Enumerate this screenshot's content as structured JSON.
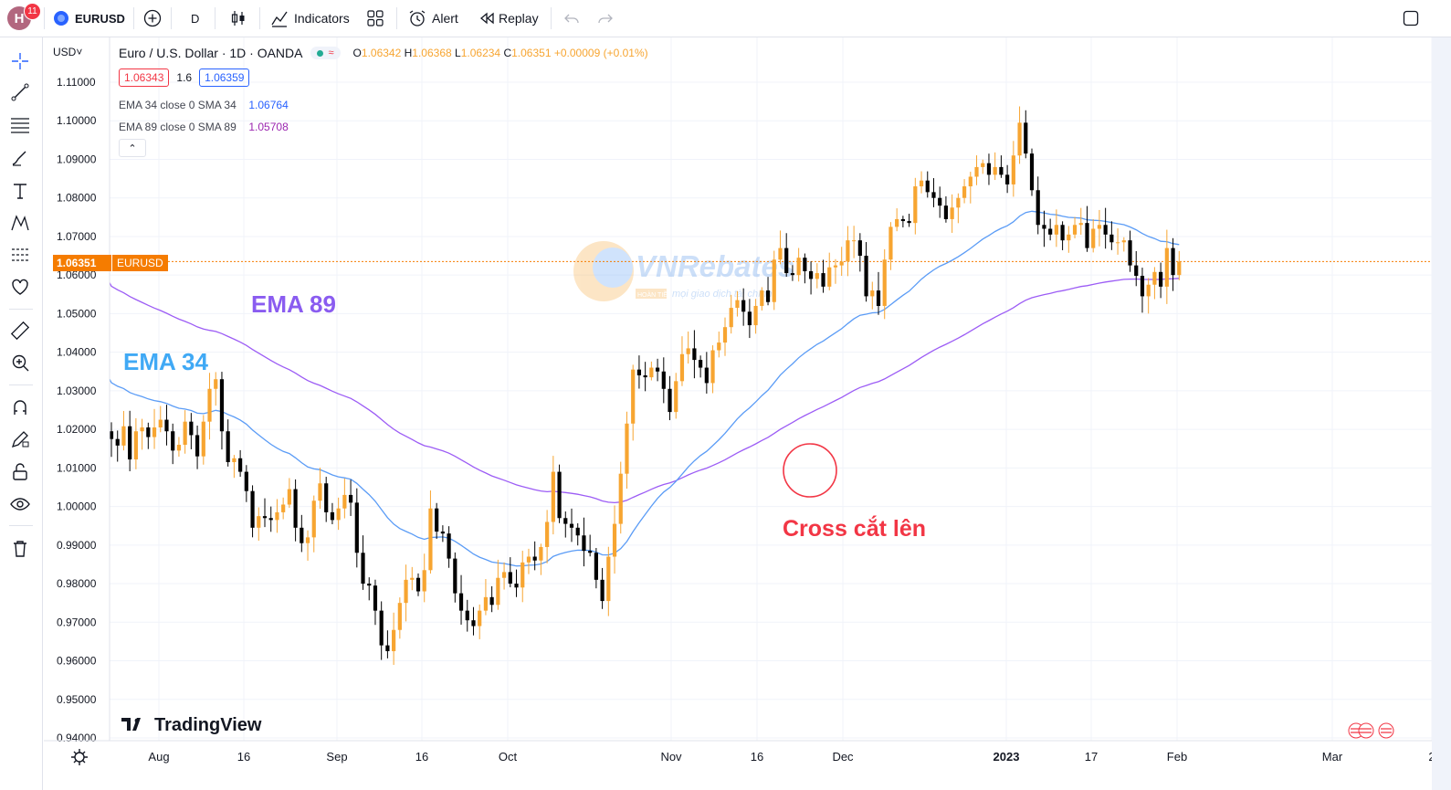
{
  "topbar": {
    "avatar_letter": "H",
    "badge_count": "11",
    "symbol": "EURUSD",
    "interval": "D",
    "indicators_label": "Indicators",
    "alert_label": "Alert",
    "replay_label": "Replay"
  },
  "legend": {
    "currency": "USD",
    "title": "Euro / U.S. Dollar · 1D · OANDA",
    "o_label": "O",
    "o_value": "1.06342",
    "h_label": "H",
    "h_value": "1.06368",
    "l_label": "L",
    "l_value": "1.06234",
    "c_label": "C",
    "c_value": "1.06351",
    "change": "+0.00009 (+0.01%)",
    "bid": "1.06343",
    "spread": "1.6",
    "ask": "1.06359",
    "ema34_label": "EMA 34 close 0 SMA 34",
    "ema34_value": "1.06764",
    "ema89_label": "EMA 89 close 0 SMA 89",
    "ema89_value": "1.05708"
  },
  "price_tag": {
    "value": "1.06351",
    "symbol": "EURUSD"
  },
  "annotations": {
    "ema89": "EMA 89",
    "ema34": "EMA 34",
    "cross": "Cross cắt lên"
  },
  "watermark": {
    "brand": "VNRebates",
    "small": "HOÀN TIỀN",
    "tagline": "mọi giao dịch tài chính"
  },
  "tradingview_logo": "TradingView",
  "colors": {
    "up": "#f7a531",
    "down": "#000000",
    "ema34": "#5b9cf6",
    "ema89": "#9c5cf5",
    "ann_purple": "#8a5cf0",
    "ann_blue": "#40a9f5",
    "ann_red": "#f23645",
    "price_line": "#f57c00"
  },
  "chart_data": {
    "type": "candlestick",
    "symbol": "EURUSD",
    "interval": "1D",
    "ylim": [
      0.94,
      1.11
    ],
    "y_ticks": [
      "1.11000",
      "1.10000",
      "1.09000",
      "1.08000",
      "1.07000",
      "1.06000",
      "1.05000",
      "1.04000",
      "1.03000",
      "1.02000",
      "1.01000",
      "1.00000",
      "0.99000",
      "0.98000",
      "0.97000",
      "0.96000",
      "0.95000",
      "0.94000"
    ],
    "x_ticks": [
      "Aug",
      "16",
      "Sep",
      "16",
      "Oct",
      "Nov",
      "16",
      "Dec",
      "2023",
      "17",
      "Feb",
      "Mar",
      "2"
    ],
    "last_price": 1.06351,
    "closes": [
      1.0175,
      1.0158,
      1.0208,
      1.0122,
      1.0195,
      1.0205,
      1.018,
      1.0205,
      1.0225,
      1.0195,
      1.0145,
      1.016,
      1.022,
      1.0185,
      1.013,
      1.022,
      1.0305,
      1.033,
      1.0195,
      1.0115,
      1.0125,
      1.009,
      1.004,
      0.9945,
      0.9975,
      0.997,
      0.9965,
      0.9985,
      1.0005,
      1.0045,
      0.9945,
      0.9905,
      0.992,
      1.0015,
      1.006,
      0.9985,
      0.9965,
      0.9995,
      1.003,
      1.001,
      0.988,
      0.98,
      0.9795,
      0.973,
      0.964,
      0.9625,
      0.968,
      0.975,
      0.981,
      0.9815,
      0.978,
      0.9835,
      0.9995,
      0.9935,
      0.993,
      0.9865,
      0.9775,
      0.973,
      0.9705,
      0.969,
      0.973,
      0.9765,
      0.9745,
      0.9815,
      0.983,
      0.98,
      0.979,
      0.9855,
      0.987,
      0.986,
      0.9895,
      0.996,
      1.009,
      0.997,
      0.9955,
      0.9945,
      0.9925,
      0.9885,
      0.988,
      0.981,
      0.9755,
      0.987,
      0.9955,
      1.0085,
      1.0215,
      1.0355,
      1.034,
      1.0335,
      1.036,
      1.035,
      1.0305,
      1.0245,
      1.0325,
      1.0395,
      1.041,
      1.038,
      1.036,
      1.032,
      1.0405,
      1.0425,
      1.0465,
      1.0515,
      1.0535,
      1.0505,
      1.047,
      1.052,
      1.056,
      1.053,
      1.064,
      1.067,
      1.0605,
      1.06,
      1.0645,
      1.061,
      1.059,
      1.0605,
      1.057,
      1.062,
      1.0625,
      1.0635,
      1.069,
      1.069,
      1.065,
      1.0545,
      1.056,
      1.052,
      1.064,
      1.0725,
      1.0745,
      1.074,
      1.0735,
      1.083,
      1.0845,
      1.0815,
      1.08,
      1.078,
      1.0745,
      1.0775,
      1.08,
      1.083,
      1.0855,
      1.088,
      1.089,
      1.086,
      1.088,
      1.086,
      1.0835,
      1.091,
      1.0995,
      1.0915,
      1.082,
      1.073,
      1.072,
      1.0705,
      1.073,
      1.069,
      1.0705,
      1.073,
      1.0735,
      1.067,
      1.072,
      1.073,
      1.0705,
      1.0685,
      1.0685,
      1.069,
      1.0625,
      1.0598,
      1.0545,
      1.0575,
      1.0608,
      1.057,
      1.067,
      1.06,
      1.0635
    ],
    "series": [
      {
        "name": "EMA 34 close 0 SMA 34",
        "last": 1.06764
      },
      {
        "name": "EMA 89 close 0 SMA 89",
        "last": 1.05708
      }
    ]
  }
}
